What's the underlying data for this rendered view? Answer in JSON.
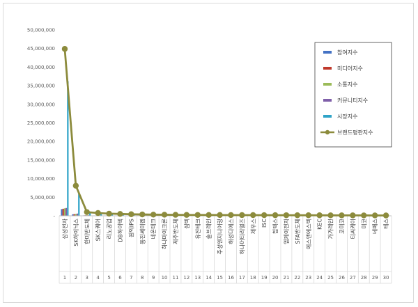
{
  "chart_data": {
    "type": "bar",
    "title": "",
    "xlabel": "",
    "ylabel": "",
    "ylim": [
      0,
      50000000
    ],
    "y_ticks": [
      "50,000,000",
      "45,000,000",
      "40,000,000",
      "35,000,000",
      "30,000,000",
      "25,000,000",
      "20,000,000",
      "15,000,000",
      "10,000,000",
      "5,000,000",
      "-"
    ],
    "categories": [
      "1",
      "2",
      "3",
      "4",
      "5",
      "6",
      "7",
      "8",
      "9",
      "10",
      "11",
      "12",
      "13",
      "14",
      "15",
      "16",
      "17",
      "18",
      "19",
      "20",
      "21",
      "22",
      "23",
      "24",
      "25",
      "26",
      "27",
      "28",
      "29",
      "30"
    ],
    "category_names": [
      "삼성전자",
      "SK하이닉스",
      "한미반도체",
      "SK스퀘어",
      "리노공업",
      "DB하이텍",
      "원익IPS",
      "동진쎄미켐",
      "네온테크",
      "하나마이크론",
      "제주반도체",
      "심텍",
      "유진테크",
      "솔브레인",
      "주성엔지니어링",
      "해성디에스",
      "하나머티리얼즈",
      "제우스",
      "ISC",
      "칩텍스",
      "엠케이전자",
      "SFA반도체",
      "에스앤에스텍",
      "KEC",
      "가가레인",
      "코미코",
      "티씨케이",
      "미코",
      "네패스",
      "테스"
    ],
    "legend_position": "right",
    "grid": false,
    "series": [
      {
        "name": "참여지수",
        "type": "bar",
        "color": "#4472c4",
        "values": [
          1800000,
          400000,
          120000,
          80000,
          70000,
          60000,
          50000,
          40000,
          35000,
          30000,
          30000,
          25000,
          25000,
          20000,
          20000,
          20000,
          15000,
          15000,
          15000,
          15000,
          12000,
          12000,
          12000,
          10000,
          10000,
          10000,
          10000,
          8000,
          8000,
          8000
        ]
      },
      {
        "name": "미디어지수",
        "type": "bar",
        "color": "#c0392b",
        "values": [
          1900000,
          450000,
          150000,
          100000,
          80000,
          70000,
          60000,
          50000,
          45000,
          40000,
          35000,
          30000,
          30000,
          25000,
          25000,
          20000,
          20000,
          20000,
          18000,
          15000,
          15000,
          15000,
          12000,
          12000,
          10000,
          10000,
          10000,
          10000,
          8000,
          8000
        ]
      },
      {
        "name": "소통지수",
        "type": "bar",
        "color": "#9bbb59",
        "values": [
          2000000,
          500000,
          180000,
          110000,
          90000,
          80000,
          70000,
          60000,
          50000,
          45000,
          40000,
          35000,
          30000,
          30000,
          25000,
          25000,
          20000,
          20000,
          20000,
          18000,
          15000,
          15000,
          15000,
          12000,
          12000,
          10000,
          10000,
          10000,
          10000,
          8000
        ]
      },
      {
        "name": "커뮤니티지수",
        "type": "bar",
        "color": "#7f5fa9",
        "values": [
          2100000,
          600000,
          160000,
          100000,
          85000,
          75000,
          65000,
          55000,
          45000,
          40000,
          35000,
          30000,
          30000,
          25000,
          25000,
          20000,
          20000,
          20000,
          18000,
          15000,
          15000,
          15000,
          12000,
          12000,
          10000,
          10000,
          10000,
          10000,
          8000,
          8000
        ]
      },
      {
        "name": "시장지수",
        "type": "bar",
        "color": "#2ea3c7",
        "values": [
          36200000,
          6200000,
          700000,
          450000,
          350000,
          300000,
          250000,
          220000,
          200000,
          180000,
          160000,
          150000,
          140000,
          130000,
          120000,
          110000,
          100000,
          95000,
          90000,
          85000,
          80000,
          75000,
          70000,
          65000,
          60000,
          55000,
          50000,
          45000,
          40000,
          35000
        ]
      },
      {
        "name": "브랜드평판지수",
        "type": "line",
        "color": "#8c8b3c",
        "values": [
          44900000,
          8100000,
          1000000,
          750000,
          580000,
          500000,
          420000,
          360000,
          320000,
          290000,
          260000,
          240000,
          230000,
          220000,
          210000,
          200000,
          190000,
          185000,
          175000,
          165000,
          160000,
          155000,
          150000,
          140000,
          130000,
          120000,
          115000,
          110000,
          100000,
          95000
        ]
      }
    ]
  }
}
